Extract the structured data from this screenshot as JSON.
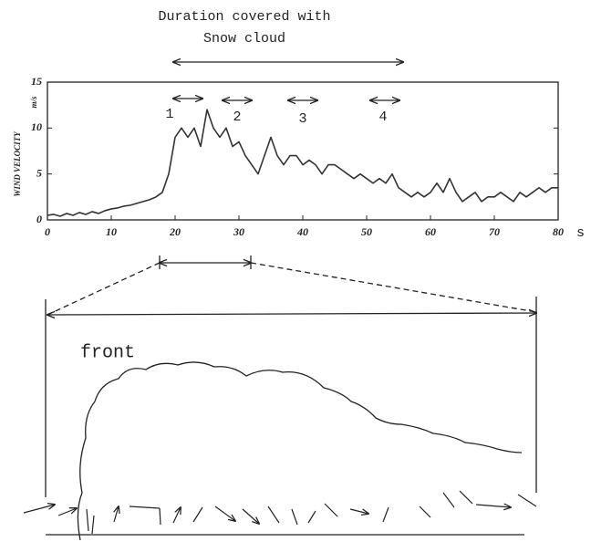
{
  "chart_data": {
    "type": "line",
    "title": [
      "Duration covered with",
      "Snow cloud"
    ],
    "y_label": "WIND VELOCITY",
    "y_unit": "m/s",
    "x_unit": "s",
    "annotations": [
      "1",
      "2",
      "3",
      "4"
    ],
    "x": [
      0,
      1,
      2,
      3,
      4,
      5,
      6,
      7,
      8,
      9,
      10,
      11,
      12,
      13,
      14,
      15,
      16,
      17,
      18,
      19,
      20,
      21,
      22,
      23,
      24,
      25,
      26,
      27,
      28,
      29,
      30,
      31,
      32,
      33,
      34,
      35,
      36,
      37,
      38,
      39,
      40,
      41,
      42,
      43,
      44,
      45,
      46,
      47,
      48,
      49,
      50,
      51,
      52,
      53,
      54,
      55,
      56,
      57,
      58,
      59,
      60,
      61,
      62,
      63,
      64,
      65,
      66,
      67,
      68,
      69,
      70,
      71,
      72,
      73,
      74,
      75,
      76,
      77,
      78,
      79,
      80
    ],
    "series": [
      {
        "color": "#333333",
        "values": [
          0.5,
          0.6,
          0.4,
          0.7,
          0.5,
          0.8,
          0.6,
          0.9,
          0.7,
          1.0,
          1.2,
          1.3,
          1.5,
          1.6,
          1.8,
          2.0,
          2.2,
          2.5,
          3.0,
          5.0,
          9.0,
          10.0,
          9.0,
          10.0,
          8.0,
          12.0,
          10.0,
          9.0,
          10.0,
          8.0,
          8.5,
          7.0,
          6.0,
          5.0,
          7.0,
          9.0,
          7.0,
          6.0,
          7.0,
          7.0,
          6.0,
          6.5,
          6.0,
          5.0,
          6.0,
          6.0,
          5.5,
          5.0,
          4.5,
          5.0,
          4.5,
          4.0,
          4.5,
          4.0,
          5.0,
          3.5,
          3.0,
          2.5,
          3.0,
          2.5,
          3.0,
          4.0,
          3.0,
          4.5,
          3.0,
          2.0,
          2.5,
          3.0,
          2.0,
          2.5,
          2.5,
          3.0,
          2.5,
          2.0,
          3.0,
          2.5,
          3.0,
          3.5,
          3.0,
          3.5,
          3.5
        ]
      }
    ],
    "xlim": [
      0,
      80
    ],
    "xticks": [
      0,
      10,
      20,
      30,
      40,
      50,
      60,
      70,
      80
    ],
    "ylim": [
      0,
      15
    ],
    "yticks": [
      0,
      5,
      10,
      15
    ]
  },
  "diagram": {
    "label": "front"
  }
}
